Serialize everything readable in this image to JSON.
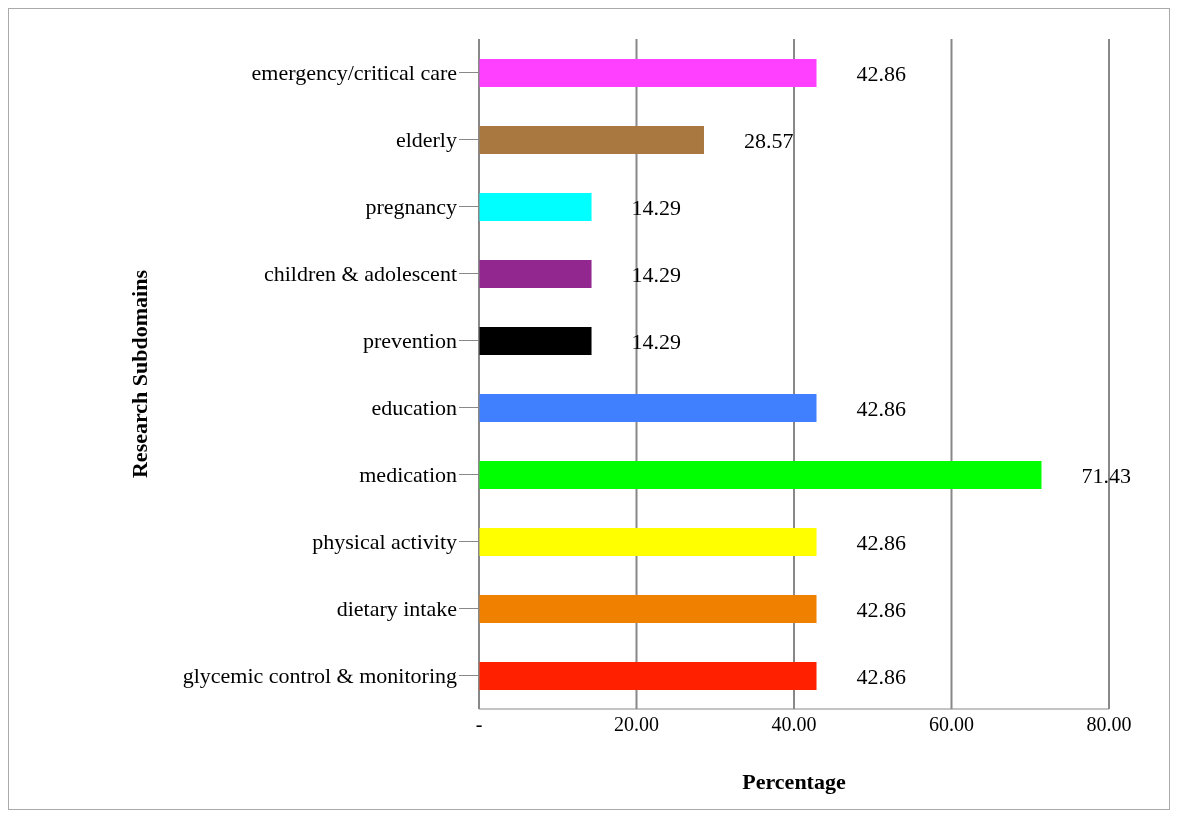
{
  "chart_data": {
    "type": "bar",
    "orientation": "horizontal",
    "xlabel": "Percentage",
    "ylabel": "Research Subdomains",
    "categories": [
      "emergency/critical care",
      "elderly",
      "pregnancy",
      "children & adolescent",
      "prevention",
      "education",
      "medication",
      "physical activity",
      "dietary intake",
      "glycemic control & monitoring"
    ],
    "values": [
      42.86,
      28.57,
      14.29,
      14.29,
      14.29,
      42.86,
      71.43,
      42.86,
      42.86,
      42.86
    ],
    "colors": [
      "#ff40ff",
      "#a87840",
      "#00ffff",
      "#92278f",
      "#000000",
      "#4080ff",
      "#00ff00",
      "#ffff00",
      "#f08000",
      "#ff2000"
    ],
    "xlim": [
      0,
      80
    ],
    "xticks": [
      {
        "value": 0,
        "label": "-"
      },
      {
        "value": 20,
        "label": "20.00"
      },
      {
        "value": 40,
        "label": "40.00"
      },
      {
        "value": 60,
        "label": "60.00"
      },
      {
        "value": 80,
        "label": "80.00"
      }
    ],
    "grid": "x",
    "data_labels": true
  }
}
